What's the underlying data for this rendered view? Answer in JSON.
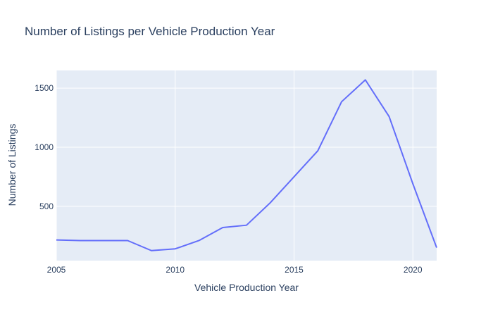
{
  "chart_data": {
    "type": "line",
    "title": "Number of Listings per Vehicle Production Year",
    "xlabel": "Vehicle Production Year",
    "ylabel": "Number of Listings",
    "xlim": [
      2005,
      2021
    ],
    "ylim": [
      40,
      1650
    ],
    "x_ticks": [
      2005,
      2010,
      2015,
      2020
    ],
    "y_ticks": [
      500,
      1000,
      1500
    ],
    "grid": true,
    "legend": "none",
    "colors": {
      "line": "#636efa",
      "plot_background": "#e5ecf6",
      "grid": "#ffffff",
      "text": "#2a3f5f"
    },
    "series": [
      {
        "x": [
          2005,
          2006,
          2007,
          2008,
          2009,
          2010,
          2011,
          2012,
          2013,
          2014,
          2015,
          2016,
          2017,
          2018,
          2019,
          2020,
          2021
        ],
        "values": [
          215,
          210,
          210,
          210,
          125,
          140,
          210,
          320,
          340,
          530,
          750,
          970,
          1385,
          1570,
          1260,
          690,
          150
        ]
      }
    ]
  }
}
